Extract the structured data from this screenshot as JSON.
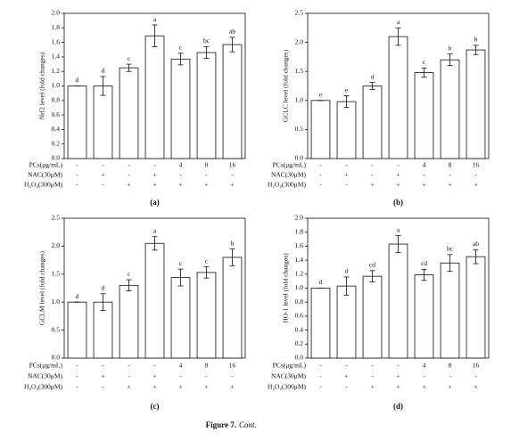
{
  "chart_data": [
    {
      "type": "bar",
      "panel": "(a)",
      "y_label": "Nrf2 level (fold changes)",
      "color": "#ffffff",
      "values": [
        1.0,
        1.0,
        1.25,
        1.69,
        1.37,
        1.46,
        1.57
      ],
      "errors": [
        0,
        0.13,
        0.05,
        0.15,
        0.08,
        0.08,
        0.1
      ],
      "letters": [
        "d",
        "d",
        "c",
        "a",
        "c",
        "bc",
        "ab"
      ],
      "ylim": [
        0,
        2
      ],
      "yticks": [
        {
          "value": 0,
          "label": "0.0"
        },
        {
          "value": 0.2,
          "label": "0.2"
        },
        {
          "value": 0.4,
          "label": "0.4"
        },
        {
          "value": 0.6,
          "label": "0.6"
        },
        {
          "value": 0.8,
          "label": "0.8"
        },
        {
          "value": 1,
          "label": "1.0"
        },
        {
          "value": 1.2,
          "label": "1.2"
        },
        {
          "value": 1.4,
          "label": "1.4"
        },
        {
          "value": 1.6,
          "label": "1.6"
        },
        {
          "value": 1.8,
          "label": "1.8"
        },
        {
          "value": 2,
          "label": "2.0"
        }
      ],
      "treatments": [
        {
          "label": "PCs(μg/mL)",
          "cells": [
            "-",
            "-",
            "-",
            "-",
            "4",
            "8",
            "16"
          ]
        },
        {
          "label": "NAC(30μM)",
          "cells": [
            "-",
            "+",
            "-",
            "+",
            "-",
            "-",
            "-"
          ]
        },
        {
          "label": "H₂O₂(300μM)",
          "cells": [
            "-",
            "-",
            "+",
            "+",
            "+",
            "+",
            "+"
          ]
        }
      ]
    },
    {
      "type": "bar",
      "panel": "(b)",
      "y_label": "GCLC level (fold changes)",
      "color": "#ffffff",
      "values": [
        1.0,
        0.98,
        1.25,
        2.1,
        1.48,
        1.7,
        1.87
      ],
      "errors": [
        0,
        0.1,
        0.06,
        0.15,
        0.08,
        0.1,
        0.08
      ],
      "letters": [
        "e",
        "e",
        "d",
        "a",
        "c",
        "b",
        "b"
      ],
      "ylim": [
        0,
        2.5
      ],
      "yticks": [
        {
          "value": 0,
          "label": "0.0"
        },
        {
          "value": 0.5,
          "label": "0.5"
        },
        {
          "value": 1,
          "label": "1.0"
        },
        {
          "value": 1.5,
          "label": "1.5"
        },
        {
          "value": 2,
          "label": "2.0"
        },
        {
          "value": 2.5,
          "label": "2.5"
        }
      ],
      "treatments": [
        {
          "label": "PCs(μg/mL)",
          "cells": [
            "-",
            "-",
            "-",
            "-",
            "4",
            "8",
            "16"
          ]
        },
        {
          "label": "NAC(30μM)",
          "cells": [
            "-",
            "+",
            "-",
            "+",
            "-",
            "-",
            "-"
          ]
        },
        {
          "label": "H₂O₂(300μM)",
          "cells": [
            "-",
            "-",
            "+",
            "+",
            "+",
            "+",
            "+"
          ]
        }
      ]
    },
    {
      "type": "bar",
      "panel": "(c)",
      "y_label": "GCLM level (fold changes)",
      "color": "#ffffff",
      "values": [
        1.0,
        1.0,
        1.3,
        2.05,
        1.44,
        1.53,
        1.8
      ],
      "errors": [
        0,
        0.15,
        0.1,
        0.12,
        0.15,
        0.1,
        0.15
      ],
      "letters": [
        "d",
        "d",
        "c",
        "a",
        "c",
        "c",
        "b"
      ],
      "ylim": [
        0,
        2.5
      ],
      "yticks": [
        {
          "value": 0,
          "label": "0.0"
        },
        {
          "value": 0.5,
          "label": "0.5"
        },
        {
          "value": 1,
          "label": "1.0"
        },
        {
          "value": 1.5,
          "label": "1.5"
        },
        {
          "value": 2,
          "label": "2.0"
        },
        {
          "value": 2.5,
          "label": "2.5"
        }
      ],
      "treatments": [
        {
          "label": "PCs(μg/mL)",
          "cells": [
            "-",
            "-",
            "-",
            "-",
            "4",
            "8",
            "16"
          ]
        },
        {
          "label": "NAC(30μM)",
          "cells": [
            "-",
            "+",
            "-",
            "+",
            "-",
            "-",
            "-"
          ]
        },
        {
          "label": "H₂O₂(300μM)",
          "cells": [
            "-",
            "-",
            "+",
            "+",
            "+",
            "+",
            "+"
          ]
        }
      ]
    },
    {
      "type": "bar",
      "panel": "(d)",
      "y_label": "HO-1 level (fold changes)",
      "color": "#ffffff",
      "values": [
        1.0,
        1.03,
        1.17,
        1.63,
        1.19,
        1.36,
        1.45
      ],
      "errors": [
        0,
        0.13,
        0.08,
        0.12,
        0.08,
        0.12,
        0.1
      ],
      "letters": [
        "d",
        "d",
        "cd",
        "a",
        "cd",
        "bc",
        "ab"
      ],
      "ylim": [
        0,
        2
      ],
      "yticks": [
        {
          "value": 0,
          "label": "0.0"
        },
        {
          "value": 0.2,
          "label": "0.2"
        },
        {
          "value": 0.4,
          "label": "0.4"
        },
        {
          "value": 0.6,
          "label": "0.6"
        },
        {
          "value": 0.8,
          "label": "0.8"
        },
        {
          "value": 1,
          "label": "1.0"
        },
        {
          "value": 1.2,
          "label": "1.2"
        },
        {
          "value": 1.4,
          "label": "1.4"
        },
        {
          "value": 1.6,
          "label": "1.6"
        },
        {
          "value": 1.8,
          "label": "1.8"
        },
        {
          "value": 2,
          "label": "2.0"
        }
      ],
      "treatments": [
        {
          "label": "PCs(μg/mL)",
          "cells": [
            "-",
            "-",
            "-",
            "-",
            "4",
            "8",
            "16"
          ]
        },
        {
          "label": "NAC(30μM)",
          "cells": [
            "-",
            "+",
            "-",
            "+",
            "-",
            "-",
            "-"
          ]
        },
        {
          "label": "H₂O₂(300μM)",
          "cells": [
            "-",
            "-",
            "+",
            "+",
            "+",
            "+",
            "+"
          ]
        }
      ]
    }
  ],
  "caption": {
    "label": "Figure 7.",
    "text": "Cont."
  }
}
